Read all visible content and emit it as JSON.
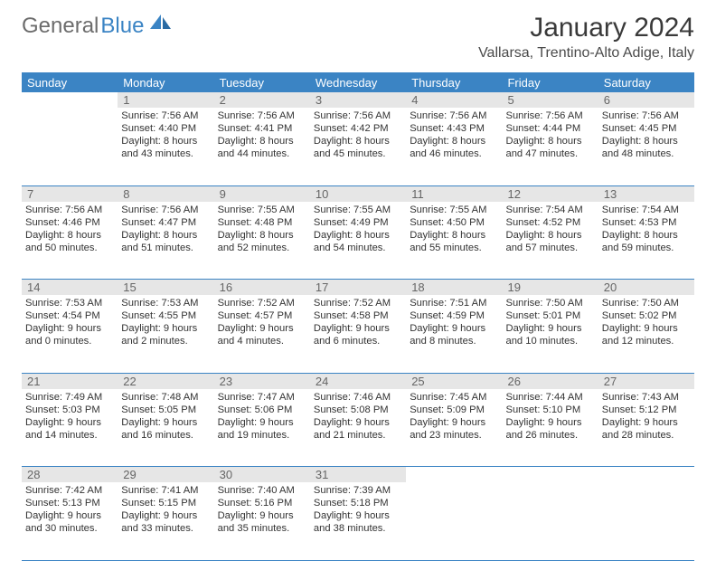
{
  "logo": {
    "text1": "General",
    "text2": "Blue"
  },
  "title": "January 2024",
  "location": "Vallarsa, Trentino-Alto Adige, Italy",
  "weekdays": [
    "Sunday",
    "Monday",
    "Tuesday",
    "Wednesday",
    "Thursday",
    "Friday",
    "Saturday"
  ],
  "colors": {
    "header_bg": "#3b84c4",
    "header_text": "#ffffff",
    "daynum_bg": "#e6e6e6",
    "daynum_text": "#666666",
    "border": "#3b84c4",
    "logo_gray": "#6c6c6c",
    "logo_blue": "#3b84c4"
  },
  "start_offset": 1,
  "days": [
    {
      "n": "1",
      "sr": "7:56 AM",
      "ss": "4:40 PM",
      "dl": "8 hours and 43 minutes."
    },
    {
      "n": "2",
      "sr": "7:56 AM",
      "ss": "4:41 PM",
      "dl": "8 hours and 44 minutes."
    },
    {
      "n": "3",
      "sr": "7:56 AM",
      "ss": "4:42 PM",
      "dl": "8 hours and 45 minutes."
    },
    {
      "n": "4",
      "sr": "7:56 AM",
      "ss": "4:43 PM",
      "dl": "8 hours and 46 minutes."
    },
    {
      "n": "5",
      "sr": "7:56 AM",
      "ss": "4:44 PM",
      "dl": "8 hours and 47 minutes."
    },
    {
      "n": "6",
      "sr": "7:56 AM",
      "ss": "4:45 PM",
      "dl": "8 hours and 48 minutes."
    },
    {
      "n": "7",
      "sr": "7:56 AM",
      "ss": "4:46 PM",
      "dl": "8 hours and 50 minutes."
    },
    {
      "n": "8",
      "sr": "7:56 AM",
      "ss": "4:47 PM",
      "dl": "8 hours and 51 minutes."
    },
    {
      "n": "9",
      "sr": "7:55 AM",
      "ss": "4:48 PM",
      "dl": "8 hours and 52 minutes."
    },
    {
      "n": "10",
      "sr": "7:55 AM",
      "ss": "4:49 PM",
      "dl": "8 hours and 54 minutes."
    },
    {
      "n": "11",
      "sr": "7:55 AM",
      "ss": "4:50 PM",
      "dl": "8 hours and 55 minutes."
    },
    {
      "n": "12",
      "sr": "7:54 AM",
      "ss": "4:52 PM",
      "dl": "8 hours and 57 minutes."
    },
    {
      "n": "13",
      "sr": "7:54 AM",
      "ss": "4:53 PM",
      "dl": "8 hours and 59 minutes."
    },
    {
      "n": "14",
      "sr": "7:53 AM",
      "ss": "4:54 PM",
      "dl": "9 hours and 0 minutes."
    },
    {
      "n": "15",
      "sr": "7:53 AM",
      "ss": "4:55 PM",
      "dl": "9 hours and 2 minutes."
    },
    {
      "n": "16",
      "sr": "7:52 AM",
      "ss": "4:57 PM",
      "dl": "9 hours and 4 minutes."
    },
    {
      "n": "17",
      "sr": "7:52 AM",
      "ss": "4:58 PM",
      "dl": "9 hours and 6 minutes."
    },
    {
      "n": "18",
      "sr": "7:51 AM",
      "ss": "4:59 PM",
      "dl": "9 hours and 8 minutes."
    },
    {
      "n": "19",
      "sr": "7:50 AM",
      "ss": "5:01 PM",
      "dl": "9 hours and 10 minutes."
    },
    {
      "n": "20",
      "sr": "7:50 AM",
      "ss": "5:02 PM",
      "dl": "9 hours and 12 minutes."
    },
    {
      "n": "21",
      "sr": "7:49 AM",
      "ss": "5:03 PM",
      "dl": "9 hours and 14 minutes."
    },
    {
      "n": "22",
      "sr": "7:48 AM",
      "ss": "5:05 PM",
      "dl": "9 hours and 16 minutes."
    },
    {
      "n": "23",
      "sr": "7:47 AM",
      "ss": "5:06 PM",
      "dl": "9 hours and 19 minutes."
    },
    {
      "n": "24",
      "sr": "7:46 AM",
      "ss": "5:08 PM",
      "dl": "9 hours and 21 minutes."
    },
    {
      "n": "25",
      "sr": "7:45 AM",
      "ss": "5:09 PM",
      "dl": "9 hours and 23 minutes."
    },
    {
      "n": "26",
      "sr": "7:44 AM",
      "ss": "5:10 PM",
      "dl": "9 hours and 26 minutes."
    },
    {
      "n": "27",
      "sr": "7:43 AM",
      "ss": "5:12 PM",
      "dl": "9 hours and 28 minutes."
    },
    {
      "n": "28",
      "sr": "7:42 AM",
      "ss": "5:13 PM",
      "dl": "9 hours and 30 minutes."
    },
    {
      "n": "29",
      "sr": "7:41 AM",
      "ss": "5:15 PM",
      "dl": "9 hours and 33 minutes."
    },
    {
      "n": "30",
      "sr": "7:40 AM",
      "ss": "5:16 PM",
      "dl": "9 hours and 35 minutes."
    },
    {
      "n": "31",
      "sr": "7:39 AM",
      "ss": "5:18 PM",
      "dl": "9 hours and 38 minutes."
    }
  ],
  "labels": {
    "sunrise": "Sunrise:",
    "sunset": "Sunset:",
    "daylight": "Daylight:"
  }
}
